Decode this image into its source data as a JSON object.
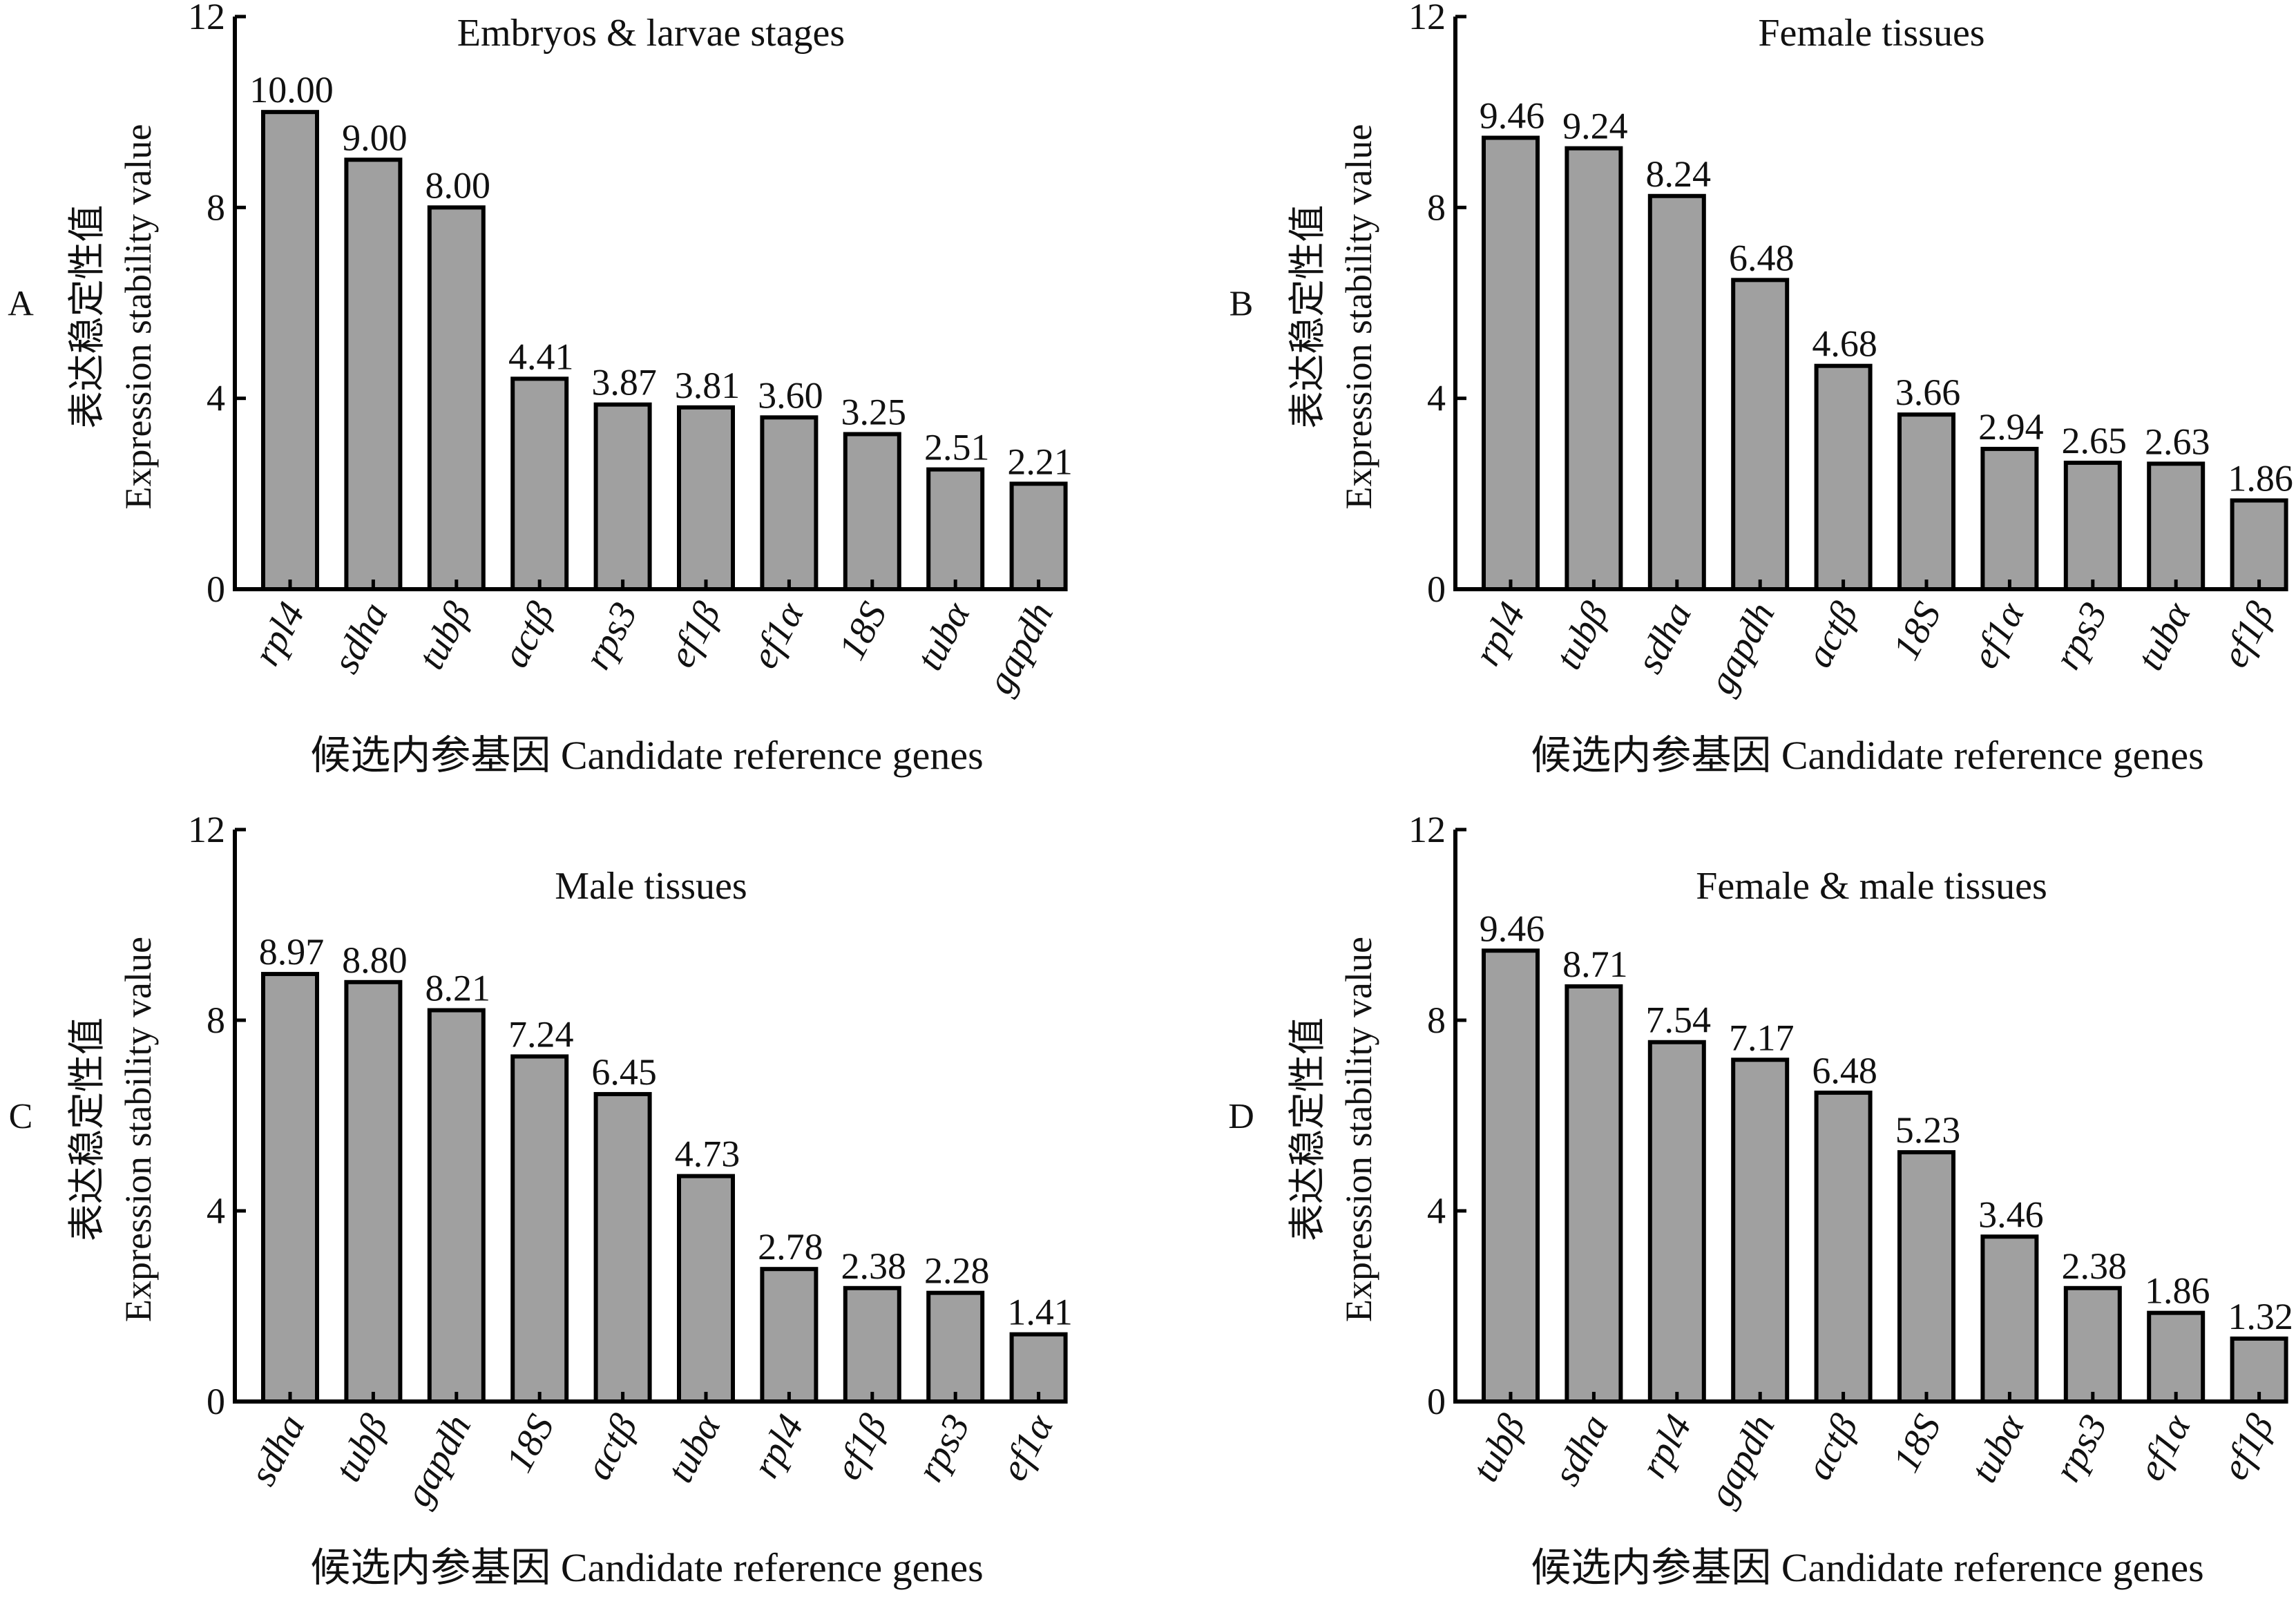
{
  "figure": {
    "y_axis_title_cn": "表达稳定性值",
    "y_axis_title_en": "Expression stability value",
    "x_axis_title": "候选内参基因 Candidate reference genes"
  },
  "chart_data": [
    {
      "panel": "A",
      "type": "bar",
      "title": "Embryos & larvae stages",
      "xlabel": "候选内参基因 Candidate reference genes",
      "ylabel": "表达稳定性值 Expression stability value",
      "ylim": [
        0,
        12
      ],
      "yticks": [
        0,
        4,
        8,
        12
      ],
      "categories": [
        "rpl4",
        "sdha",
        "tubβ",
        "actβ",
        "rps3",
        "ef1β",
        "ef1α",
        "18S",
        "tubα",
        "gapdh"
      ],
      "values": [
        10.0,
        9.0,
        8.0,
        4.41,
        3.87,
        3.81,
        3.6,
        3.25,
        2.51,
        2.21
      ],
      "value_labels": [
        "10.00",
        "9.00",
        "8.00",
        "4.41",
        "3.87",
        "3.81",
        "3.60",
        "3.25",
        "2.51",
        "2.21"
      ],
      "grid": false,
      "bar_color": "#a0a0a0"
    },
    {
      "panel": "B",
      "type": "bar",
      "title": "Female tissues",
      "xlabel": "候选内参基因 Candidate reference genes",
      "ylabel": "表达稳定性值 Expression stability value",
      "ylim": [
        0,
        12
      ],
      "yticks": [
        0,
        4,
        8,
        12
      ],
      "categories": [
        "rpl4",
        "tubβ",
        "sdha",
        "gapdh",
        "actβ",
        "18S",
        "ef1α",
        "rps3",
        "tubα",
        "ef1β"
      ],
      "values": [
        9.46,
        9.24,
        8.24,
        6.48,
        4.68,
        3.66,
        2.94,
        2.65,
        2.63,
        1.86
      ],
      "value_labels": [
        "9.46",
        "9.24",
        "8.24",
        "6.48",
        "4.68",
        "3.66",
        "2.94",
        "2.65",
        "2.63",
        "1.86"
      ],
      "grid": false,
      "bar_color": "#a0a0a0"
    },
    {
      "panel": "C",
      "type": "bar",
      "title": "Male tissues",
      "xlabel": "候选内参基因 Candidate reference genes",
      "ylabel": "表达稳定性值 Expression stability value",
      "ylim": [
        0,
        12
      ],
      "yticks": [
        0,
        4,
        8,
        12
      ],
      "categories": [
        "sdha",
        "tubβ",
        "gapdh",
        "18S",
        "actβ",
        "tubα",
        "rpl4",
        "ef1β",
        "rps3",
        "ef1α"
      ],
      "values": [
        8.97,
        8.8,
        8.21,
        7.24,
        6.45,
        4.73,
        2.78,
        2.38,
        2.28,
        1.41
      ],
      "value_labels": [
        "8.97",
        "8.80",
        "8.21",
        "7.24",
        "6.45",
        "4.73",
        "2.78",
        "2.38",
        "2.28",
        "1.41"
      ],
      "grid": false,
      "bar_color": "#a0a0a0"
    },
    {
      "panel": "D",
      "type": "bar",
      "title": "Female & male tissues",
      "xlabel": "候选内参基因 Candidate reference genes",
      "ylabel": "表达稳定性值 Expression stability value",
      "ylim": [
        0,
        12
      ],
      "yticks": [
        0,
        4,
        8,
        12
      ],
      "categories": [
        "tubβ",
        "sdha",
        "rpl4",
        "gapdh",
        "actβ",
        "18S",
        "tubα",
        "rps3",
        "ef1α",
        "ef1β"
      ],
      "values": [
        9.46,
        8.71,
        7.54,
        7.17,
        6.48,
        5.23,
        3.46,
        2.38,
        1.86,
        1.32
      ],
      "value_labels": [
        "9.46",
        "8.71",
        "7.54",
        "7.17",
        "6.48",
        "5.23",
        "3.46",
        "2.38",
        "1.86",
        "1.32"
      ],
      "grid": false,
      "bar_color": "#a0a0a0"
    }
  ]
}
